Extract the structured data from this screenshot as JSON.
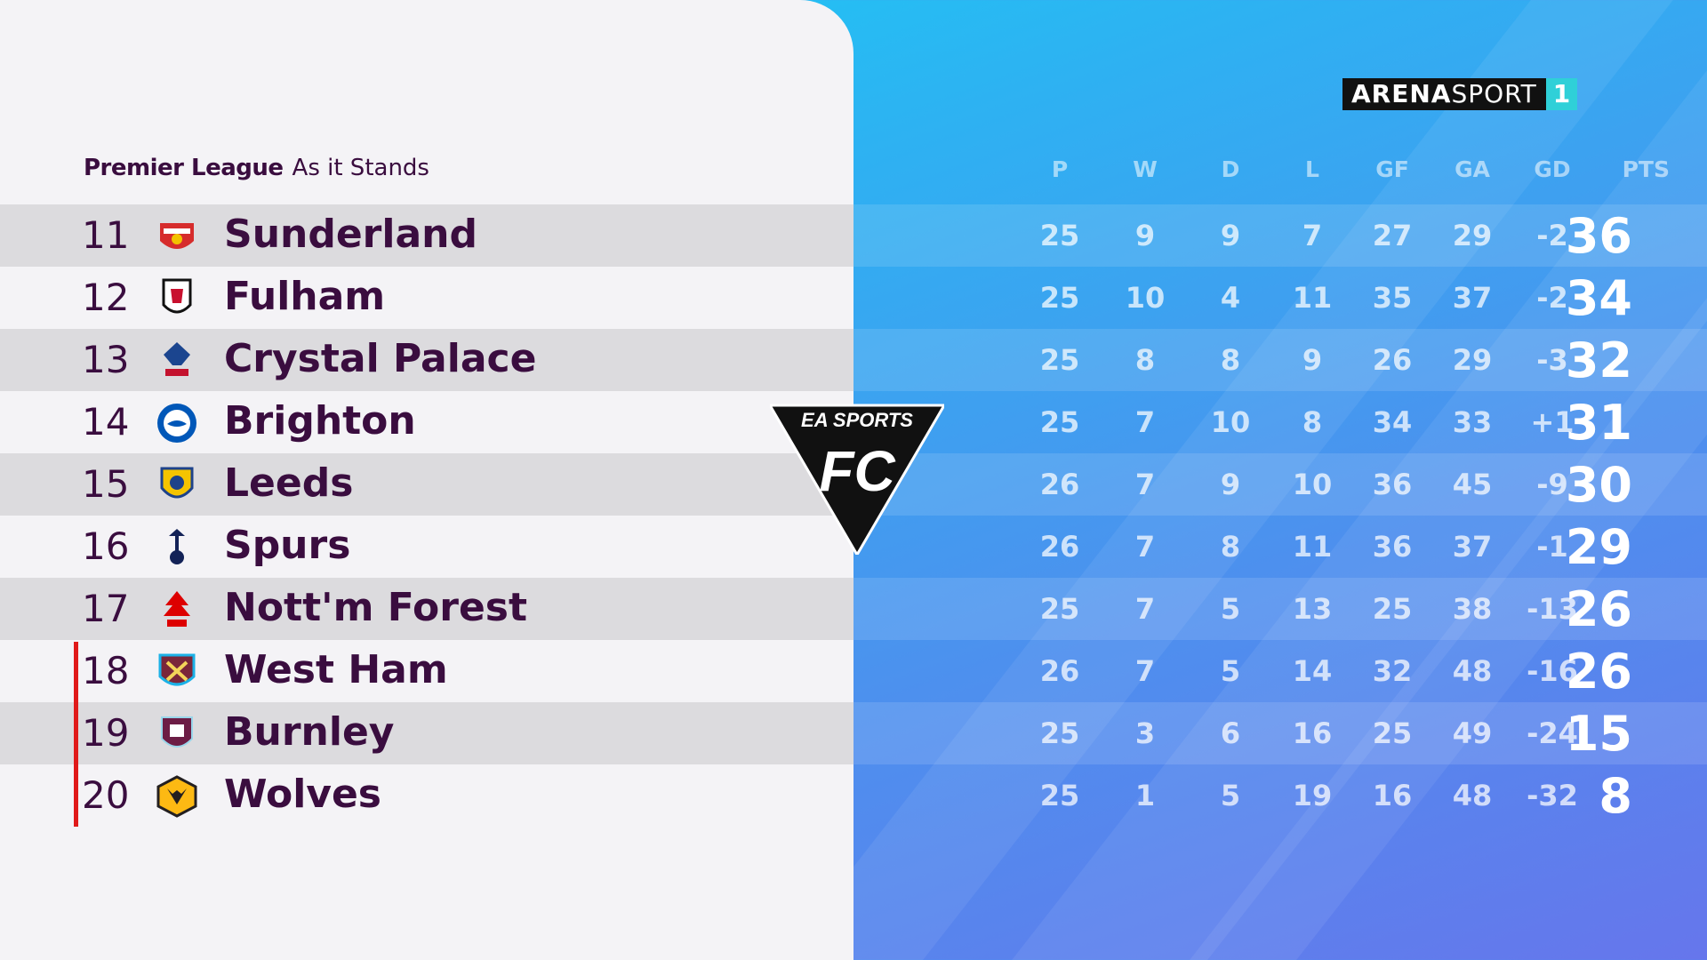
{
  "header": {
    "league": "Premier League",
    "subtitle": "As it Stands"
  },
  "broadcaster": {
    "name_bold": "ARENA",
    "name_light": "SPORT",
    "channel": "1"
  },
  "overlay_logo": {
    "brand": "EA SPORTS",
    "product": "FC"
  },
  "columns": [
    "P",
    "W",
    "D",
    "L",
    "GF",
    "GA",
    "GD",
    "PTS"
  ],
  "colors": {
    "team_text": "#3a0d3f",
    "relegation": "#e01a1a",
    "panel": "#f4f3f6"
  },
  "rows": [
    {
      "pos": "11",
      "team": "Sunderland",
      "crest": "sunderland-crest-icon",
      "p": "25",
      "w": "9",
      "d": "9",
      "l": "7",
      "gf": "27",
      "ga": "29",
      "gd": "-2",
      "pts": "36"
    },
    {
      "pos": "12",
      "team": "Fulham",
      "crest": "fulham-crest-icon",
      "p": "25",
      "w": "10",
      "d": "4",
      "l": "11",
      "gf": "35",
      "ga": "37",
      "gd": "-2",
      "pts": "34"
    },
    {
      "pos": "13",
      "team": "Crystal Palace",
      "crest": "crystal-palace-crest-icon",
      "p": "25",
      "w": "8",
      "d": "8",
      "l": "9",
      "gf": "26",
      "ga": "29",
      "gd": "-3",
      "pts": "32"
    },
    {
      "pos": "14",
      "team": "Brighton",
      "crest": "brighton-crest-icon",
      "p": "25",
      "w": "7",
      "d": "10",
      "l": "8",
      "gf": "34",
      "ga": "33",
      "gd": "+1",
      "pts": "31"
    },
    {
      "pos": "15",
      "team": "Leeds",
      "crest": "leeds-crest-icon",
      "p": "26",
      "w": "7",
      "d": "9",
      "l": "10",
      "gf": "36",
      "ga": "45",
      "gd": "-9",
      "pts": "30"
    },
    {
      "pos": "16",
      "team": "Spurs",
      "crest": "spurs-crest-icon",
      "p": "26",
      "w": "7",
      "d": "8",
      "l": "11",
      "gf": "36",
      "ga": "37",
      "gd": "-1",
      "pts": "29"
    },
    {
      "pos": "17",
      "team": "Nott'm Forest",
      "crest": "nottm-forest-crest-icon",
      "p": "25",
      "w": "7",
      "d": "5",
      "l": "13",
      "gf": "25",
      "ga": "38",
      "gd": "-13",
      "pts": "26"
    },
    {
      "pos": "18",
      "team": "West Ham",
      "crest": "west-ham-crest-icon",
      "p": "26",
      "w": "7",
      "d": "5",
      "l": "14",
      "gf": "32",
      "ga": "48",
      "gd": "-16",
      "pts": "26"
    },
    {
      "pos": "19",
      "team": "Burnley",
      "crest": "burnley-crest-icon",
      "p": "25",
      "w": "3",
      "d": "6",
      "l": "16",
      "gf": "25",
      "ga": "49",
      "gd": "-24",
      "pts": "15"
    },
    {
      "pos": "20",
      "team": "Wolves",
      "crest": "wolves-crest-icon",
      "p": "25",
      "w": "1",
      "d": "5",
      "l": "19",
      "gf": "16",
      "ga": "48",
      "gd": "-32",
      "pts": "8"
    }
  ]
}
